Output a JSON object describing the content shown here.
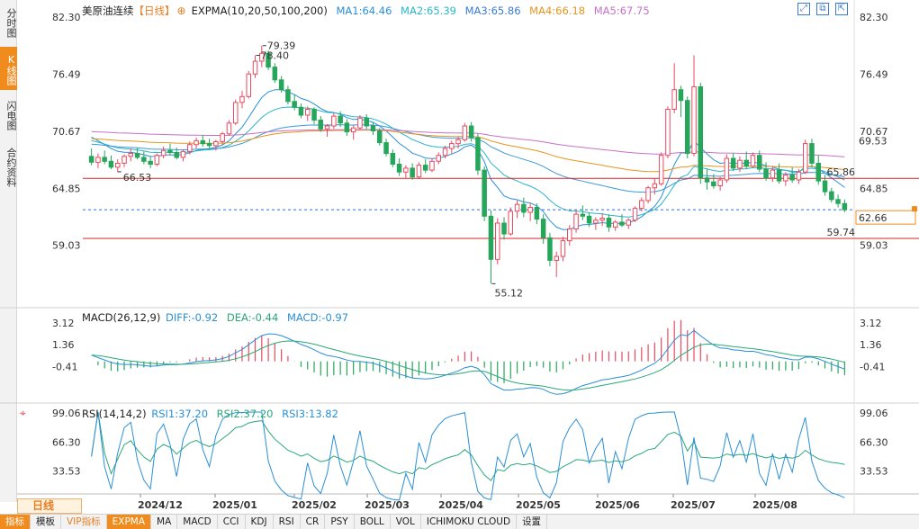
{
  "sidebar": {
    "tabs": [
      {
        "label": "分时图",
        "active": false
      },
      {
        "label": "K线图",
        "active": true
      },
      {
        "label": "闪电图",
        "active": false
      },
      {
        "label": "合约资料",
        "active": false
      }
    ]
  },
  "header": {
    "instrument": "美原油连续",
    "period_tag": "【日线】",
    "indicator": "EXPMA(10,20,50,100,200)",
    "ma1": "MA1:64.46",
    "ma2": "MA2:65.39",
    "ma3": "MA3:65.86",
    "ma4": "MA4:66.18",
    "ma5": "MA5:67.75"
  },
  "macd_legend": {
    "name": "MACD(26,12,9)",
    "diff": "DIFF:-0.92",
    "dea": "DEA:-0.44",
    "macd": "MACD:-0.97"
  },
  "rsi_legend": {
    "name": "RSI(14,14,2)",
    "rsi1": "RSI1:37.20",
    "rsi2": "RSI2:37.20",
    "rsi3": "RSI3:13.82"
  },
  "bottom": {
    "period": "日线",
    "toolbar": [
      "指标",
      "模板",
      "VIP指标",
      "EXPMA",
      "MA",
      "MACD",
      "CCI",
      "KDJ",
      "RSI",
      "CR",
      "PSY",
      "BOLL",
      "VOL",
      "ICHIMOKU CLOUD",
      "设置"
    ]
  },
  "colors": {
    "up": "#e84a5f",
    "down": "#26a65b",
    "accent": "#f08c1e",
    "level_line": "#d9232a",
    "last_line": "#2b6fd6"
  },
  "chart_data": [
    {
      "type": "candlestick",
      "series_name": "美原油连续 日线",
      "y_ticks": [
        82.3,
        76.49,
        70.67,
        64.85,
        59.03
      ],
      "ylim": [
        53.5,
        82.3
      ],
      "x_ticks": [
        "2024/12",
        "2025/01",
        "2025/02",
        "2025/03",
        "2025/04",
        "2025/05",
        "2025/06",
        "2025/07",
        "2025/08"
      ],
      "high_label": "79.39",
      "high2_label": "78.40",
      "low_label": "55.12",
      "left_low_label": "66.53",
      "levels": [
        {
          "value": 65.86,
          "label": "65.86"
        },
        {
          "value": 59.74,
          "label": "59.74"
        }
      ],
      "last_price": 62.66,
      "last_price_label": "62.66",
      "ma5_right_label": "69.53",
      "candles": [
        [
          68.1,
          68.9,
          67.2,
          67.5
        ],
        [
          67.5,
          68.4,
          66.9,
          68.0
        ],
        [
          68.0,
          68.7,
          67.3,
          67.6
        ],
        [
          67.6,
          68.2,
          66.8,
          67.0
        ],
        [
          67.0,
          67.8,
          66.5,
          67.4
        ],
        [
          67.4,
          68.3,
          67.0,
          68.1
        ],
        [
          68.1,
          68.9,
          67.6,
          68.4
        ],
        [
          68.4,
          69.0,
          67.8,
          68.0
        ],
        [
          68.0,
          68.6,
          67.3,
          67.6
        ],
        [
          67.6,
          68.1,
          66.9,
          67.3
        ],
        [
          67.3,
          68.4,
          67.1,
          68.2
        ],
        [
          68.2,
          69.1,
          67.9,
          68.7
        ],
        [
          68.7,
          69.4,
          68.2,
          68.5
        ],
        [
          68.5,
          69.0,
          67.8,
          68.0
        ],
        [
          68.0,
          68.8,
          67.6,
          68.6
        ],
        [
          68.6,
          69.6,
          68.3,
          69.3
        ],
        [
          69.3,
          70.0,
          68.9,
          69.7
        ],
        [
          69.7,
          70.3,
          69.1,
          69.4
        ],
        [
          69.4,
          69.9,
          68.8,
          69.2
        ],
        [
          69.2,
          69.8,
          68.7,
          69.6
        ],
        [
          69.6,
          70.6,
          69.3,
          70.4
        ],
        [
          70.4,
          71.8,
          70.2,
          71.5
        ],
        [
          71.5,
          73.9,
          71.3,
          73.6
        ],
        [
          73.6,
          74.8,
          73.0,
          74.2
        ],
        [
          74.2,
          76.8,
          74.0,
          76.5
        ],
        [
          76.5,
          78.4,
          76.1,
          77.8
        ],
        [
          77.8,
          79.39,
          77.2,
          78.6
        ],
        [
          78.6,
          78.9,
          76.9,
          77.2
        ],
        [
          77.2,
          77.6,
          75.6,
          75.9
        ],
        [
          75.9,
          76.3,
          74.6,
          74.9
        ],
        [
          74.9,
          75.3,
          73.4,
          73.7
        ],
        [
          73.7,
          74.4,
          72.8,
          73.1
        ],
        [
          73.1,
          73.5,
          72.0,
          72.3
        ],
        [
          72.3,
          73.2,
          71.7,
          72.9
        ],
        [
          72.9,
          73.1,
          71.4,
          71.8
        ],
        [
          71.8,
          72.2,
          70.6,
          70.9
        ],
        [
          70.9,
          71.4,
          70.1,
          71.2
        ],
        [
          71.2,
          72.5,
          70.9,
          72.2
        ],
        [
          72.2,
          72.7,
          71.1,
          71.5
        ],
        [
          71.5,
          71.9,
          70.2,
          70.6
        ],
        [
          70.6,
          71.3,
          69.8,
          71.0
        ],
        [
          71.0,
          72.3,
          70.8,
          72.0
        ],
        [
          72.0,
          72.4,
          70.9,
          71.2
        ],
        [
          71.2,
          71.6,
          70.3,
          70.7
        ],
        [
          70.7,
          71.0,
          69.2,
          69.5
        ],
        [
          69.5,
          69.9,
          68.1,
          68.4
        ],
        [
          68.4,
          68.8,
          67.0,
          67.3
        ],
        [
          67.3,
          67.9,
          66.1,
          66.5
        ],
        [
          66.5,
          67.2,
          65.9,
          66.9
        ],
        [
          66.9,
          67.4,
          65.7,
          66.0
        ],
        [
          66.0,
          67.5,
          65.8,
          67.2
        ],
        [
          67.2,
          67.8,
          66.4,
          66.7
        ],
        [
          66.7,
          67.9,
          66.5,
          67.6
        ],
        [
          67.6,
          68.5,
          67.3,
          68.2
        ],
        [
          68.2,
          69.2,
          67.9,
          68.9
        ],
        [
          68.9,
          69.7,
          68.4,
          69.4
        ],
        [
          69.4,
          70.1,
          68.9,
          69.8
        ],
        [
          69.8,
          71.5,
          69.6,
          71.2
        ],
        [
          71.2,
          71.6,
          69.6,
          70.0
        ],
        [
          70.0,
          70.4,
          66.2,
          66.7
        ],
        [
          66.7,
          67.1,
          61.5,
          62.0
        ],
        [
          62.0,
          62.6,
          55.12,
          57.6
        ],
        [
          57.6,
          61.8,
          57.1,
          61.3
        ],
        [
          61.3,
          61.9,
          59.6,
          60.2
        ],
        [
          60.2,
          62.9,
          60.0,
          62.5
        ],
        [
          62.5,
          63.6,
          61.8,
          63.2
        ],
        [
          63.2,
          63.9,
          61.9,
          62.4
        ],
        [
          62.4,
          63.3,
          61.5,
          62.9
        ],
        [
          62.9,
          63.3,
          61.2,
          61.7
        ],
        [
          61.7,
          62.2,
          59.2,
          59.8
        ],
        [
          59.8,
          60.3,
          56.9,
          57.5
        ],
        [
          57.5,
          58.4,
          55.8,
          57.9
        ],
        [
          57.9,
          59.9,
          57.4,
          59.5
        ],
        [
          59.5,
          61.1,
          59.0,
          60.7
        ],
        [
          60.7,
          62.6,
          60.3,
          62.2
        ],
        [
          62.2,
          63.1,
          61.6,
          62.0
        ],
        [
          62.0,
          62.4,
          60.9,
          61.3
        ],
        [
          61.3,
          61.9,
          60.6,
          61.6
        ],
        [
          61.6,
          62.3,
          61.0,
          61.8
        ],
        [
          61.8,
          62.2,
          60.4,
          60.9
        ],
        [
          60.9,
          61.6,
          60.5,
          61.4
        ],
        [
          61.4,
          62.2,
          60.9,
          61.1
        ],
        [
          61.1,
          61.8,
          60.7,
          61.6
        ],
        [
          61.6,
          63.0,
          61.4,
          62.8
        ],
        [
          62.8,
          63.9,
          62.5,
          63.6
        ],
        [
          63.6,
          65.1,
          63.3,
          64.9
        ],
        [
          64.9,
          65.8,
          64.2,
          65.3
        ],
        [
          65.3,
          68.5,
          65.1,
          68.2
        ],
        [
          68.2,
          73.2,
          67.9,
          72.9
        ],
        [
          72.9,
          77.6,
          72.5,
          74.9
        ],
        [
          74.9,
          75.3,
          72.1,
          73.8
        ],
        [
          73.8,
          74.2,
          67.9,
          68.4
        ],
        [
          68.4,
          78.4,
          68.1,
          75.2
        ],
        [
          75.2,
          75.6,
          65.3,
          65.9
        ],
        [
          65.9,
          66.8,
          64.7,
          65.5
        ],
        [
          65.5,
          66.3,
          64.8,
          65.1
        ],
        [
          65.1,
          66.0,
          64.6,
          65.7
        ],
        [
          65.7,
          68.3,
          65.4,
          67.9
        ],
        [
          67.9,
          68.4,
          66.6,
          66.9
        ],
        [
          66.9,
          68.1,
          66.5,
          67.7
        ],
        [
          67.7,
          68.6,
          66.8,
          67.1
        ],
        [
          67.1,
          68.5,
          66.9,
          68.2
        ],
        [
          68.2,
          68.7,
          66.5,
          66.8
        ],
        [
          66.8,
          67.5,
          65.6,
          65.9
        ],
        [
          65.9,
          67.1,
          65.5,
          66.7
        ],
        [
          66.7,
          67.4,
          65.3,
          65.6
        ],
        [
          65.6,
          66.5,
          65.1,
          66.2
        ],
        [
          66.2,
          67.0,
          65.4,
          65.7
        ],
        [
          65.7,
          66.8,
          65.3,
          66.5
        ],
        [
          66.5,
          69.8,
          66.3,
          69.4
        ],
        [
          69.4,
          69.9,
          67.0,
          67.4
        ],
        [
          67.4,
          68.2,
          65.2,
          65.6
        ],
        [
          65.6,
          66.2,
          64.1,
          64.5
        ],
        [
          64.5,
          64.9,
          63.4,
          63.7
        ],
        [
          63.7,
          64.2,
          62.9,
          63.3
        ],
        [
          63.3,
          63.7,
          62.4,
          62.66
        ]
      ]
    },
    {
      "type": "macd",
      "series_names": [
        "DIFF",
        "DEA",
        "MACD"
      ],
      "y_ticks": [
        3.12,
        1.36,
        -0.41
      ]
    },
    {
      "type": "rsi",
      "series_names": [
        "RSI1",
        "RSI2",
        "RSI3"
      ],
      "y_ticks": [
        99.06,
        66.3,
        33.53
      ]
    }
  ]
}
